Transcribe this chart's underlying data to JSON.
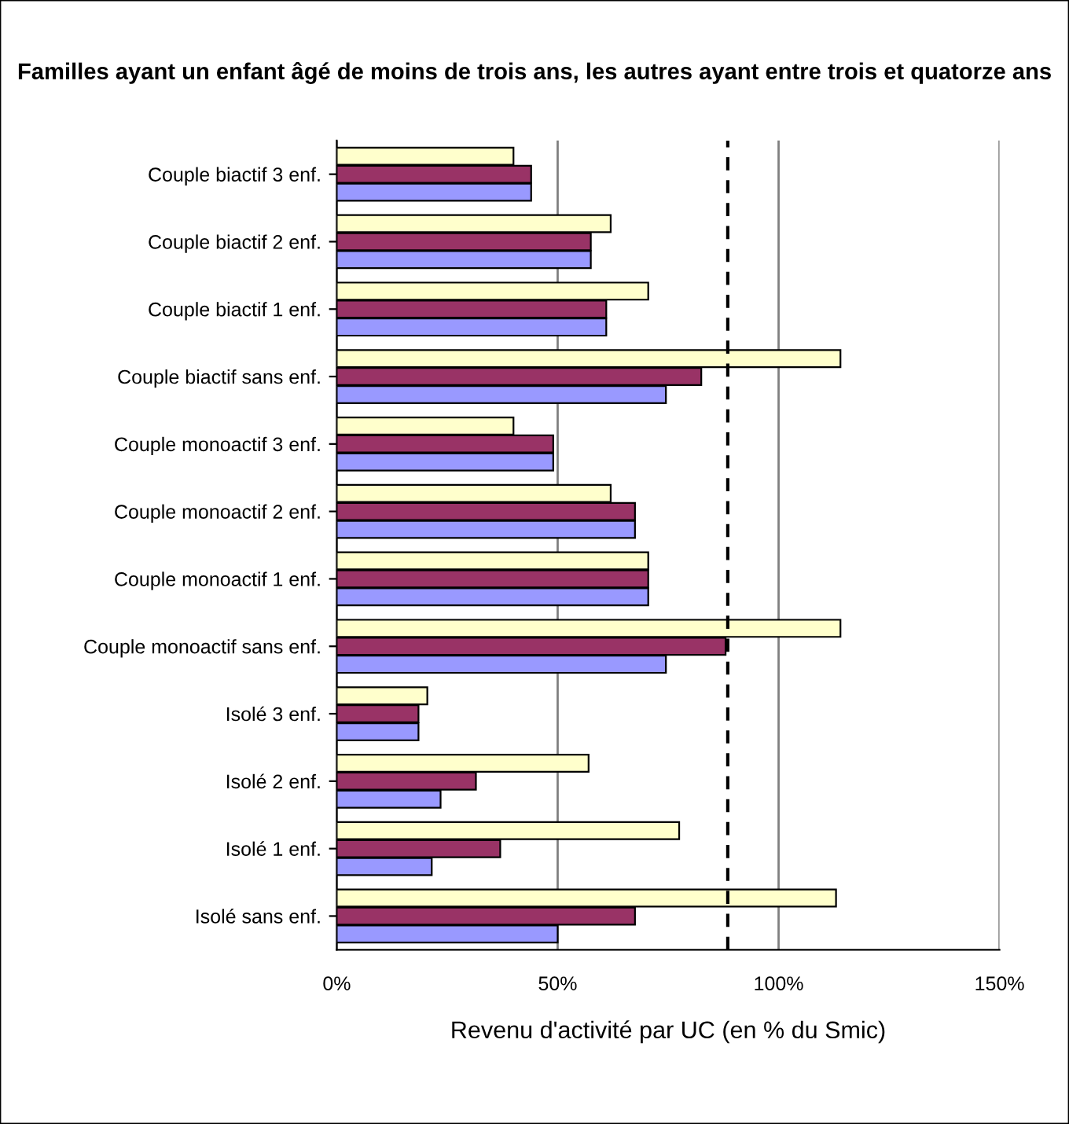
{
  "chart_data": {
    "type": "bar",
    "orientation": "horizontal",
    "title": "Familles ayant un enfant âgé de moins de trois ans, les autres ayant entre trois et quatorze ans",
    "xlabel": "Revenu d'activité par UC (en % du Smic)",
    "categories": [
      "Couple biactif 3 enf.",
      "Couple biactif 2 enf.",
      "Couple biactif 1 enf.",
      "Couple biactif sans enf.",
      "Couple monoactif 3 enf.",
      "Couple monoactif 2 enf.",
      "Couple monoactif 1 enf.",
      "Couple monoactif sans enf.",
      "Isolé 3 enf.",
      "Isolé 2 enf.",
      "Isolé 1 enf.",
      "Isolé sans enf."
    ],
    "series": [
      {
        "color": "#ffffcc",
        "values": [
          40,
          62,
          70.5,
          114,
          40,
          62,
          70.5,
          114,
          20.5,
          57,
          77.5,
          113
        ]
      },
      {
        "color": "#993366",
        "values": [
          44,
          57.5,
          61,
          82.5,
          49,
          67.5,
          70.5,
          88,
          18.5,
          31.5,
          37,
          67.5
        ]
      },
      {
        "color": "#9999ff",
        "values": [
          44,
          57.5,
          61,
          74.5,
          49,
          67.5,
          70.5,
          74.5,
          18.5,
          23.5,
          21.5,
          50
        ]
      }
    ],
    "xlim": [
      0,
      150
    ],
    "xticks": [
      {
        "value": 0,
        "label": "0%"
      },
      {
        "value": 50,
        "label": "50%"
      },
      {
        "value": 100,
        "label": "100%"
      },
      {
        "value": 150,
        "label": "150%"
      }
    ],
    "grid": "x",
    "ref_lines": [
      {
        "axis": "x",
        "value": 88.5,
        "color": "#000000",
        "line_style": "dashed"
      }
    ]
  }
}
